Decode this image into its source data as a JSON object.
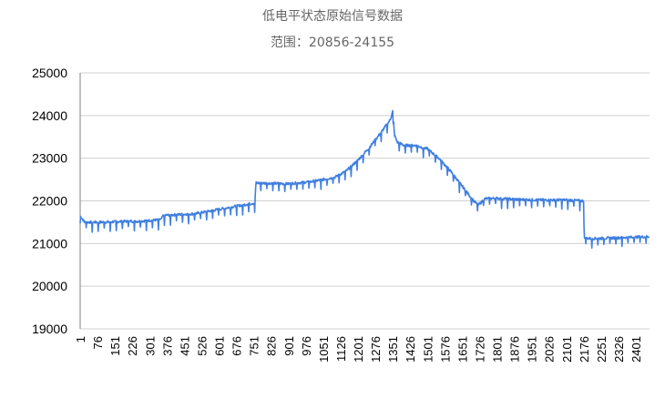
{
  "chart_data": {
    "type": "line",
    "title": "低电平状态原始信号数据",
    "subtitle": "范围：20856-24155",
    "xlabel": "",
    "ylabel": "",
    "ylim": [
      19000,
      25000
    ],
    "yticks": [
      19000,
      20000,
      21000,
      22000,
      23000,
      24000,
      25000
    ],
    "xlim": [
      1,
      2460
    ],
    "xticks": [
      "1",
      "76",
      "151",
      "226",
      "301",
      "376",
      "451",
      "526",
      "601",
      "676",
      "751",
      "826",
      "901",
      "976",
      "1051",
      "1126",
      "1201",
      "1276",
      "1351",
      "1426",
      "1501",
      "1576",
      "1651",
      "1726",
      "1801",
      "1876",
      "1951",
      "2026",
      "2101",
      "2176",
      "2251",
      "2326",
      "2401"
    ],
    "grid": true,
    "legend": "none",
    "series": [
      {
        "color": "#3f7fe0",
        "x": [
          1,
          20,
          100,
          200,
          250,
          350,
          360,
          500,
          600,
          700,
          755,
          760,
          900,
          1000,
          1100,
          1150,
          1200,
          1250,
          1300,
          1340,
          1352,
          1358,
          1370,
          1400,
          1450,
          1500,
          1550,
          1600,
          1650,
          1700,
          1720,
          1750,
          1800,
          1900,
          2000,
          2100,
          2175,
          2178,
          2250,
          2350,
          2460
        ],
        "values": [
          21650,
          21500,
          21500,
          21520,
          21520,
          21560,
          21660,
          21700,
          21800,
          21900,
          21950,
          22420,
          22400,
          22450,
          22550,
          22700,
          22950,
          23250,
          23600,
          23900,
          24120,
          23550,
          23380,
          23300,
          23300,
          23220,
          23000,
          22700,
          22350,
          22000,
          21900,
          22050,
          22060,
          22030,
          22020,
          22020,
          22000,
          21120,
          21120,
          21140,
          21160
        ],
        "range": [
          20856,
          24155
        ]
      }
    ]
  }
}
